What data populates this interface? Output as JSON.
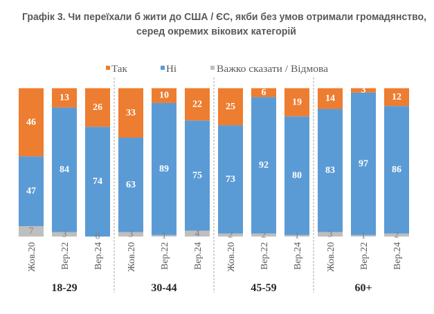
{
  "chart_data": {
    "type": "bar",
    "stacked": true,
    "normalized_percent": true,
    "title": "Графік 3. Чи переїхали б жити до США / ЄС, якби без умов отримали громадянство, серед окремих вікових категорій",
    "title_lines": [
      "Графік 3. Чи переїхали б жити до США / ЄС, якби без умов отримали громадянство,",
      "серед окремих вікових категорій"
    ],
    "xlabel": "",
    "ylabel": "",
    "ylim": [
      0,
      100
    ],
    "grid": false,
    "legend": "top",
    "categories": [
      "Жов.20",
      "Вер.22",
      "Вер.24",
      "Жов.20",
      "Вер.22",
      "Вер.24",
      "Жов.20",
      "Вер.22",
      "Вер.24",
      "Жов.20",
      "Вер.22",
      "Вер.24"
    ],
    "groups": [
      {
        "label": "18-29",
        "categories": [
          "Жов.20",
          "Вер.22",
          "Вер.24"
        ]
      },
      {
        "label": "30-44",
        "categories": [
          "Жов.20",
          "Вер.22",
          "Вер.24"
        ]
      },
      {
        "label": "45-59",
        "categories": [
          "Жов.20",
          "Вер.22",
          "Вер.24"
        ]
      },
      {
        "label": "60+",
        "categories": [
          "Жов.20",
          "Вер.22",
          "Вер.24"
        ]
      }
    ],
    "series": [
      {
        "name": "Так",
        "color": "#ED7D31",
        "label_color": "#FFFFFF",
        "values": [
          46,
          13,
          26,
          33,
          10,
          22,
          25,
          6,
          19,
          14,
          3,
          12
        ]
      },
      {
        "name": "Ні",
        "color": "#5B9BD5",
        "label_color": "#FFFFFF",
        "values": [
          47,
          84,
          74,
          63,
          89,
          75,
          73,
          92,
          80,
          83,
          97,
          86
        ]
      },
      {
        "name": "Важко сказати / Відмова",
        "color": "#BFBFBF",
        "label_color": "#808080",
        "values": [
          7,
          3,
          0,
          3,
          1,
          4,
          2,
          2,
          1,
          3,
          1,
          2
        ]
      }
    ]
  }
}
